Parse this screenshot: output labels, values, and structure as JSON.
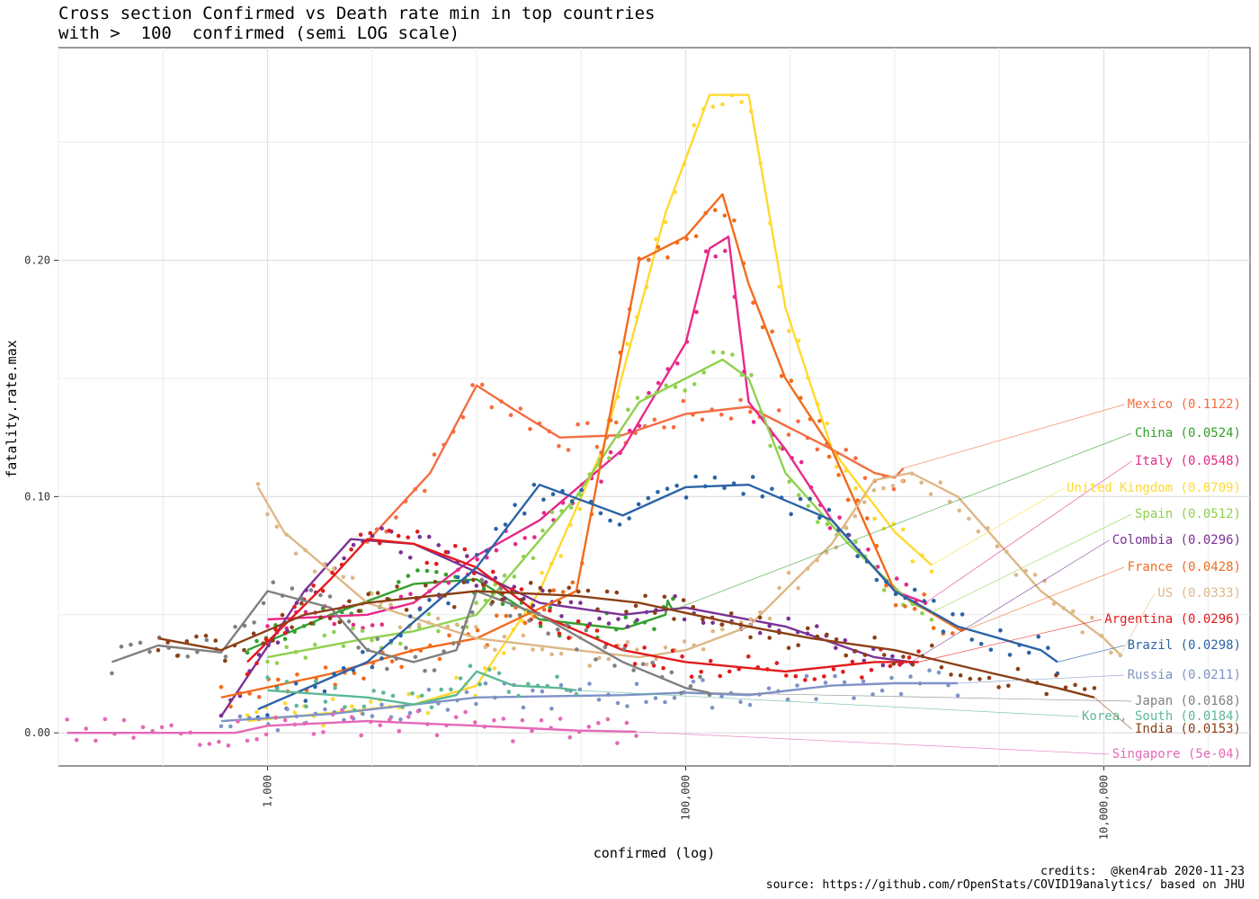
{
  "chart_data": {
    "type": "scatter",
    "title": "Cross section Confirmed vs Death rate min in top countries\nwith >  100  confirmed (semi LOG scale)",
    "xlabel": "confirmed (log)",
    "ylabel": "fatality.rate.max",
    "x_scale": "log10",
    "xlim": [
      100,
      50000000
    ],
    "ylim": [
      -0.014,
      0.29
    ],
    "x_ticks": [
      {
        "value": 1000,
        "label": "1,000"
      },
      {
        "value": 100000,
        "label": "100,000"
      },
      {
        "value": 10000000,
        "label": "10,000,000"
      }
    ],
    "y_ticks": [
      {
        "value": 0.0,
        "label": "0.00"
      },
      {
        "value": 0.1,
        "label": "0.10"
      },
      {
        "value": 0.2,
        "label": "0.20"
      }
    ],
    "grid": true,
    "series": [
      {
        "name": "Mexico",
        "label": "Mexico (0.1122)",
        "color": "#F46D43",
        "points": [
          [
            3000,
            0.081
          ],
          [
            6000,
            0.11
          ],
          [
            10000,
            0.147
          ],
          [
            15000,
            0.137
          ],
          [
            25000,
            0.125
          ],
          [
            50000,
            0.126
          ],
          [
            100000,
            0.135
          ],
          [
            200000,
            0.138
          ],
          [
            300000,
            0.13
          ],
          [
            500000,
            0.12
          ],
          [
            800000,
            0.11
          ],
          [
            1000000,
            0.108
          ],
          [
            1100000,
            0.112
          ]
        ]
      },
      {
        "name": "China",
        "label": "China (0.0524)",
        "color": "#33A02C",
        "points": [
          [
            800,
            0.035
          ],
          [
            2000,
            0.05
          ],
          [
            5000,
            0.063
          ],
          [
            10000,
            0.065
          ],
          [
            20000,
            0.048
          ],
          [
            50000,
            0.044
          ],
          [
            80000,
            0.05
          ],
          [
            82000,
            0.056
          ],
          [
            84000,
            0.054
          ],
          [
            87000,
            0.052
          ]
        ]
      },
      {
        "name": "Italy",
        "label": "Italy (0.0548)",
        "color": "#E7298A",
        "points": [
          [
            1000,
            0.048
          ],
          [
            3000,
            0.05
          ],
          [
            5000,
            0.055
          ],
          [
            10000,
            0.075
          ],
          [
            20000,
            0.09
          ],
          [
            50000,
            0.12
          ],
          [
            100000,
            0.165
          ],
          [
            130000,
            0.205
          ],
          [
            160000,
            0.21
          ],
          [
            200000,
            0.14
          ],
          [
            300000,
            0.12
          ],
          [
            500000,
            0.09
          ],
          [
            1000000,
            0.06
          ],
          [
            1400000,
            0.055
          ]
        ]
      },
      {
        "name": "United Kingdom",
        "label": "United Kingdom (0.0709)",
        "color": "#FFD92F",
        "points": [
          [
            800,
            0.005
          ],
          [
            5000,
            0.012
          ],
          [
            10000,
            0.02
          ],
          [
            20000,
            0.06
          ],
          [
            40000,
            0.12
          ],
          [
            80000,
            0.22
          ],
          [
            130000,
            0.27
          ],
          [
            200000,
            0.27
          ],
          [
            300000,
            0.18
          ],
          [
            500000,
            0.12
          ],
          [
            1000000,
            0.085
          ],
          [
            1500000,
            0.071
          ]
        ]
      },
      {
        "name": "Spain",
        "label": "Spain (0.0512)",
        "color": "#8FD14F",
        "points": [
          [
            1000,
            0.032
          ],
          [
            3000,
            0.04
          ],
          [
            5000,
            0.043
          ],
          [
            10000,
            0.05
          ],
          [
            30000,
            0.1
          ],
          [
            60000,
            0.14
          ],
          [
            100000,
            0.15
          ],
          [
            150000,
            0.158
          ],
          [
            200000,
            0.15
          ],
          [
            300000,
            0.11
          ],
          [
            600000,
            0.08
          ],
          [
            1200000,
            0.055
          ],
          [
            1500000,
            0.051
          ]
        ]
      },
      {
        "name": "Colombia",
        "label": "Colombia (0.0296)",
        "color": "#7B3294",
        "points": [
          [
            600,
            0.007
          ],
          [
            1500,
            0.06
          ],
          [
            2500,
            0.082
          ],
          [
            5000,
            0.08
          ],
          [
            10000,
            0.068
          ],
          [
            20000,
            0.055
          ],
          [
            50000,
            0.05
          ],
          [
            100000,
            0.053
          ],
          [
            300000,
            0.045
          ],
          [
            800000,
            0.032
          ],
          [
            1200000,
            0.03
          ]
        ]
      },
      {
        "name": "France",
        "label": "France (0.0428)",
        "color": "#F26B1D",
        "points": [
          [
            600,
            0.015
          ],
          [
            2000,
            0.025
          ],
          [
            5000,
            0.035
          ],
          [
            10000,
            0.04
          ],
          [
            30000,
            0.06
          ],
          [
            60000,
            0.2
          ],
          [
            100000,
            0.21
          ],
          [
            150000,
            0.228
          ],
          [
            200000,
            0.19
          ],
          [
            300000,
            0.15
          ],
          [
            500000,
            0.12
          ],
          [
            1000000,
            0.06
          ],
          [
            2100000,
            0.043
          ]
        ]
      },
      {
        "name": "US",
        "label": "US (0.0333)",
        "color": "#DEB887",
        "points": [
          [
            900,
            0.104
          ],
          [
            1200,
            0.085
          ],
          [
            3000,
            0.055
          ],
          [
            10000,
            0.04
          ],
          [
            30000,
            0.035
          ],
          [
            60000,
            0.032
          ],
          [
            100000,
            0.035
          ],
          [
            200000,
            0.045
          ],
          [
            500000,
            0.08
          ],
          [
            800000,
            0.107
          ],
          [
            1200000,
            0.11
          ],
          [
            2000000,
            0.1
          ],
          [
            5000000,
            0.06
          ],
          [
            10000000,
            0.04
          ],
          [
            12000000,
            0.033
          ]
        ]
      },
      {
        "name": "Argentina",
        "label": "Argentina (0.0296)",
        "color": "#E31A1C",
        "points": [
          [
            800,
            0.03
          ],
          [
            2000,
            0.065
          ],
          [
            3000,
            0.082
          ],
          [
            5000,
            0.08
          ],
          [
            10000,
            0.07
          ],
          [
            20000,
            0.05
          ],
          [
            50000,
            0.035
          ],
          [
            100000,
            0.03
          ],
          [
            300000,
            0.026
          ],
          [
            800000,
            0.03
          ],
          [
            1300000,
            0.03
          ]
        ]
      },
      {
        "name": "Brazil",
        "label": "Brazil (0.0298)",
        "color": "#2B63A6",
        "points": [
          [
            900,
            0.01
          ],
          [
            3000,
            0.03
          ],
          [
            10000,
            0.07
          ],
          [
            20000,
            0.105
          ],
          [
            50000,
            0.092
          ],
          [
            100000,
            0.104
          ],
          [
            200000,
            0.105
          ],
          [
            500000,
            0.09
          ],
          [
            1000000,
            0.06
          ],
          [
            2000000,
            0.045
          ],
          [
            5000000,
            0.035
          ],
          [
            6000000,
            0.03
          ]
        ]
      },
      {
        "name": "Russia",
        "label": "Russia (0.0211)",
        "color": "#7F93C7",
        "points": [
          [
            600,
            0.005
          ],
          [
            2000,
            0.008
          ],
          [
            5000,
            0.012
          ],
          [
            10000,
            0.015
          ],
          [
            50000,
            0.016
          ],
          [
            100000,
            0.017
          ],
          [
            200000,
            0.016
          ],
          [
            500000,
            0.02
          ],
          [
            1000000,
            0.021
          ],
          [
            2000000,
            0.021
          ]
        ]
      },
      {
        "name": "Japan",
        "label": "Japan (0.0168)",
        "color": "#808080",
        "points": [
          [
            180,
            0.03
          ],
          [
            300,
            0.037
          ],
          [
            600,
            0.034
          ],
          [
            1000,
            0.06
          ],
          [
            2000,
            0.053
          ],
          [
            3000,
            0.035
          ],
          [
            5000,
            0.03
          ],
          [
            8000,
            0.035
          ],
          [
            10000,
            0.06
          ],
          [
            20000,
            0.05
          ],
          [
            50000,
            0.03
          ],
          [
            100000,
            0.019
          ],
          [
            130000,
            0.017
          ]
        ]
      },
      {
        "name": "Korea, South",
        "label": "Korea, South (0.0184)",
        "color": "#5DB897",
        "points": [
          [
            1000,
            0.018
          ],
          [
            3000,
            0.015
          ],
          [
            5000,
            0.012
          ],
          [
            8000,
            0.016
          ],
          [
            10000,
            0.026
          ],
          [
            15000,
            0.02
          ],
          [
            25000,
            0.019
          ],
          [
            30000,
            0.018
          ]
        ]
      },
      {
        "name": "India",
        "label": "India (0.0153)",
        "color": "#8C3F15",
        "points": [
          [
            300,
            0.04
          ],
          [
            600,
            0.035
          ],
          [
            1500,
            0.05
          ],
          [
            3000,
            0.055
          ],
          [
            10000,
            0.06
          ],
          [
            30000,
            0.058
          ],
          [
            60000,
            0.055
          ],
          [
            200000,
            0.045
          ],
          [
            400000,
            0.04
          ],
          [
            1000000,
            0.035
          ],
          [
            3000000,
            0.025
          ],
          [
            6000000,
            0.019
          ],
          [
            9000000,
            0.015
          ]
        ]
      },
      {
        "name": "Singapore",
        "label": "Singapore (5e-04)",
        "color": "#E469B7",
        "points": [
          [
            110,
            0.0
          ],
          [
            700,
            0.0
          ],
          [
            1000,
            0.003
          ],
          [
            3000,
            0.005
          ],
          [
            10000,
            0.003
          ],
          [
            30000,
            0.001
          ],
          [
            58000,
            0.0005
          ]
        ]
      }
    ]
  },
  "credits": "credits:  @ken4rab 2020-11-23\nsource: https://github.com/rOpenStats/COVID19analytics/ based on JHU"
}
